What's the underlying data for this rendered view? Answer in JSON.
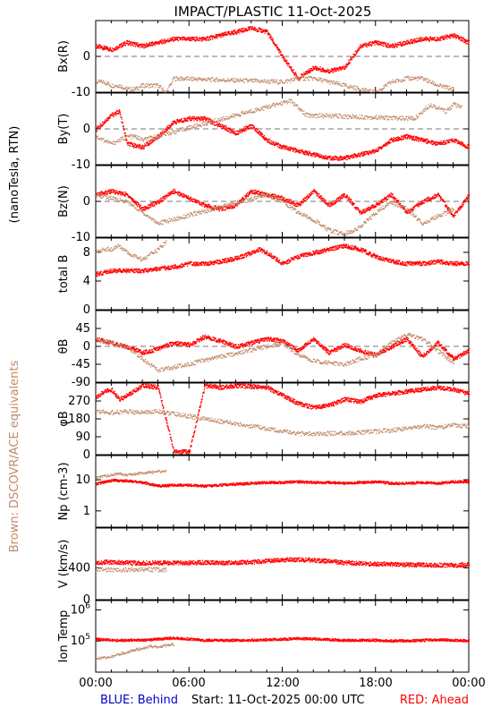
{
  "title": "IMPACT/PLASTIC   11-Oct-2025",
  "side_label_units": "(nanoTesla, RTN)",
  "side_label_legend": "Brown: DSCOVR/ACE equivalents",
  "footer": {
    "behind": "BLUE: Behind",
    "start": "Start: 11-Oct-2025 00:00 UTC",
    "ahead": "RED: Ahead"
  },
  "x_ticks": [
    "00:00",
    "06:00",
    "12:00",
    "18:00",
    "00:00"
  ],
  "colors": {
    "ahead": "#ff0000",
    "dscovr": "#c08a6a",
    "behind": "#0000cc",
    "axis": "#000000"
  },
  "chart_data": [
    {
      "type": "scatter",
      "id": "bx",
      "ylabel": "Bx(R)",
      "ylim": [
        -10,
        10
      ],
      "ticks": [
        {
          "v": 0,
          "t": "0"
        },
        {
          "v": -10,
          "t": "-10"
        }
      ],
      "zero_line": true,
      "series": [
        {
          "name": "RED: Ahead",
          "key": "red",
          "x": [
            0,
            1,
            2,
            3,
            4,
            5,
            6,
            7,
            8,
            9,
            10,
            11,
            12,
            13,
            14,
            15,
            16,
            17,
            18,
            19,
            20,
            21,
            22,
            23,
            24
          ],
          "y": [
            3,
            2,
            4,
            3,
            4,
            5,
            5,
            5,
            6,
            7,
            8,
            7,
            0,
            -6,
            -3,
            -4,
            -3,
            3,
            4,
            3,
            4,
            5,
            5,
            6,
            4
          ]
        },
        {
          "name": "Brown: DSCOVR/ACE equivalents",
          "key": "brown",
          "x": [
            0,
            0.5,
            1,
            1.5,
            2,
            2.5,
            3,
            3.5,
            4,
            4.5,
            5,
            12,
            13,
            14,
            15,
            16,
            17,
            18,
            19,
            20,
            21,
            22,
            23
          ],
          "y": [
            -7,
            -7,
            -8,
            -8,
            -9,
            -9,
            -8,
            -8,
            -8,
            -10,
            -6,
            -7,
            -6,
            -6,
            -7,
            -8,
            -9,
            -10,
            -7,
            -6,
            -6,
            -8,
            -9
          ]
        }
      ]
    },
    {
      "type": "scatter",
      "id": "by",
      "ylabel": "By(T)",
      "ylim": [
        -10,
        10
      ],
      "ticks": [
        {
          "v": 0,
          "t": "0"
        },
        {
          "v": -10,
          "t": "-10"
        }
      ],
      "zero_line": true,
      "series": [
        {
          "name": "RED: Ahead",
          "key": "red",
          "x": [
            0,
            1,
            1.5,
            2,
            3,
            4,
            5,
            6,
            7,
            8,
            9,
            10,
            11,
            12,
            13,
            14,
            15,
            16,
            17,
            18,
            19,
            20,
            21,
            22,
            23,
            24
          ],
          "y": [
            0,
            4,
            5,
            -4,
            -5,
            -2,
            2,
            3,
            3,
            1,
            -1,
            1,
            -3,
            -5,
            -6,
            -7,
            -8,
            -8,
            -7,
            -6,
            -3,
            -2,
            -3,
            -4,
            -3,
            -5
          ]
        },
        {
          "name": "Brown: DSCOVR/ACE equivalents",
          "key": "brown",
          "x": [
            0,
            0.5,
            1,
            1.5,
            2,
            2.5,
            3,
            12.5,
            13,
            13.5,
            20.5,
            21,
            21.5,
            22,
            22.5,
            23,
            23.5
          ],
          "y": [
            -2,
            -3,
            -4,
            -3,
            -2,
            -2,
            -3,
            8,
            6,
            4,
            3,
            5,
            7,
            6,
            5,
            7,
            6
          ]
        }
      ]
    },
    {
      "type": "scatter",
      "id": "bz",
      "ylabel": "Bz(N)",
      "ylim": [
        -10,
        10
      ],
      "ticks": [
        {
          "v": 0,
          "t": "0"
        },
        {
          "v": -10,
          "t": "-10"
        }
      ],
      "zero_line": true,
      "series": [
        {
          "name": "RED: Ahead",
          "key": "red",
          "x": [
            0,
            1,
            2,
            3,
            4,
            5,
            6,
            7,
            8,
            9,
            10,
            11,
            12,
            13,
            14,
            15,
            16,
            17,
            18,
            19,
            20,
            21,
            22,
            23,
            24
          ],
          "y": [
            2,
            3,
            2,
            -2,
            0,
            3,
            1,
            -1,
            -2,
            -1,
            3,
            2,
            1,
            -1,
            3,
            -1,
            2,
            -3,
            -1,
            2,
            -3,
            0,
            2,
            -4,
            2
          ]
        },
        {
          "name": "Brown: DSCOVR/ACE equivalents",
          "key": "brown",
          "x": [
            0,
            1,
            2,
            3,
            4,
            11,
            12,
            13,
            14,
            15,
            16,
            17,
            18,
            19,
            20,
            21,
            22,
            23
          ],
          "y": [
            2,
            1,
            0,
            -3,
            -6,
            2,
            0,
            -3,
            -5,
            -8,
            -9,
            -7,
            -3,
            0,
            -2,
            -6,
            -4,
            -2
          ]
        }
      ]
    },
    {
      "type": "scatter",
      "id": "bt",
      "ylabel": "total B",
      "ylim": [
        0,
        10
      ],
      "ticks": [
        {
          "v": 0,
          "t": "0"
        },
        {
          "v": 4,
          "t": "4"
        },
        {
          "v": 8,
          "t": "8"
        }
      ],
      "zero_line": false,
      "series": [
        {
          "name": "RED: Ahead",
          "key": "red",
          "x": [
            0,
            1,
            2,
            3,
            4,
            5,
            6,
            7,
            8,
            9,
            10,
            10.5,
            11,
            12,
            13,
            14,
            15,
            16,
            17,
            18,
            19,
            20,
            21,
            22,
            23,
            24
          ],
          "y": [
            5,
            5.5,
            5.5,
            5.5,
            5.8,
            6,
            6.5,
            6.5,
            6.8,
            7.2,
            8,
            8.5,
            8,
            6.5,
            7.5,
            8,
            8.5,
            9,
            8.5,
            7.5,
            6.8,
            6.5,
            6.5,
            6.8,
            6.5,
            6.5
          ]
        },
        {
          "name": "Brown: DSCOVR/ACE equivalents",
          "key": "brown",
          "x": [
            0,
            0.5,
            1,
            1.5,
            2,
            2.5,
            3,
            3.5,
            4,
            4.5
          ],
          "y": [
            8,
            8.5,
            8.5,
            9,
            8,
            7.5,
            7,
            7.8,
            8.5,
            9.5
          ]
        }
      ]
    },
    {
      "type": "scatter",
      "id": "theta",
      "ylabel": "θB",
      "ylim": [
        -90,
        90
      ],
      "ticks": [
        {
          "v": 45,
          "t": "45"
        },
        {
          "v": 0,
          "t": "0"
        },
        {
          "v": -45,
          "t": "-45"
        },
        {
          "v": -90,
          "t": "-90"
        }
      ],
      "zero_line": true,
      "series": [
        {
          "name": "RED: Ahead",
          "key": "red",
          "x": [
            0,
            1,
            2,
            3,
            4,
            5,
            6,
            7,
            8,
            9,
            10,
            11,
            12,
            13,
            14,
            15,
            16,
            17,
            18,
            19,
            20,
            21,
            22,
            23,
            24
          ],
          "y": [
            20,
            10,
            0,
            -15,
            -5,
            10,
            5,
            25,
            15,
            0,
            10,
            20,
            15,
            -10,
            20,
            -15,
            5,
            -10,
            -20,
            0,
            20,
            -25,
            10,
            -30,
            -10
          ]
        },
        {
          "name": "Brown: DSCOVR/ACE equivalents",
          "key": "brown",
          "x": [
            0,
            1,
            2,
            3,
            4,
            12,
            13,
            14,
            15,
            16,
            17,
            18,
            19,
            20,
            21,
            22,
            23
          ],
          "y": [
            20,
            10,
            0,
            -30,
            -60,
            10,
            -20,
            -35,
            -40,
            -45,
            -30,
            -20,
            10,
            30,
            20,
            -10,
            -40
          ]
        }
      ]
    },
    {
      "type": "scatter",
      "id": "phi",
      "ylabel": "φB",
      "ylim": [
        0,
        360
      ],
      "ticks": [
        {
          "v": 270,
          "t": "270"
        },
        {
          "v": 180,
          "t": "180"
        },
        {
          "v": 90,
          "t": "90"
        },
        {
          "v": 0,
          "t": "0"
        }
      ],
      "zero_line": false,
      "series": [
        {
          "name": "RED: Ahead",
          "key": "red",
          "x": [
            0,
            0.5,
            1,
            1.5,
            2,
            3,
            4,
            5,
            6,
            7,
            8,
            9,
            10,
            11,
            12,
            13,
            14,
            15,
            16,
            17,
            18,
            19,
            20,
            21,
            22,
            23,
            24
          ],
          "y": [
            290,
            320,
            330,
            280,
            300,
            350,
            340,
            20,
            15,
            350,
            340,
            350,
            345,
            340,
            300,
            260,
            240,
            250,
            280,
            270,
            300,
            310,
            320,
            330,
            340,
            330,
            310
          ]
        },
        {
          "name": "Brown: DSCOVR/ACE equivalents",
          "key": "brown",
          "x": [
            0,
            1,
            2,
            3,
            4,
            12,
            13,
            14,
            15,
            16,
            17,
            18,
            19,
            20,
            21,
            22,
            23,
            24
          ],
          "y": [
            220,
            215,
            220,
            215,
            220,
            120,
            110,
            105,
            110,
            110,
            115,
            120,
            125,
            135,
            145,
            140,
            150,
            145
          ]
        }
      ]
    },
    {
      "type": "scatter",
      "id": "np",
      "ylabel": "Np (cm-3)",
      "ylog": true,
      "ylim": [
        0.3,
        60
      ],
      "ticks": [
        {
          "v": 10,
          "t": "10"
        },
        {
          "v": 1,
          "t": "1"
        }
      ],
      "zero_line": false,
      "series": [
        {
          "name": "RED: Ahead",
          "key": "red",
          "x": [
            0,
            1,
            2,
            3,
            4,
            5,
            6,
            7,
            8,
            9,
            10,
            11,
            12,
            13,
            14,
            15,
            16,
            17,
            18,
            19,
            20,
            21,
            22,
            23,
            24
          ],
          "y": [
            7.5,
            10,
            9.5,
            8.5,
            6.5,
            7,
            7,
            6.5,
            7,
            7.5,
            8,
            8.5,
            8.5,
            9,
            8.5,
            8.5,
            8,
            8.5,
            9,
            8,
            8,
            8.5,
            8,
            9,
            9
          ]
        },
        {
          "name": "Brown: DSCOVR/ACE equivalents",
          "key": "brown",
          "x": [
            0,
            0.5,
            1,
            1.5,
            2,
            2.5,
            3,
            3.5,
            4,
            4.5
          ],
          "y": [
            12,
            14,
            15,
            16,
            15,
            16,
            17,
            18,
            19,
            20
          ]
        }
      ]
    },
    {
      "type": "scatter",
      "id": "v",
      "ylabel": "V (km/s)",
      "ylim": [
        0,
        900
      ],
      "ticks": [
        {
          "v": 400,
          "t": "400"
        },
        {
          "v": 0,
          "t": "0"
        }
      ],
      "zero_line": false,
      "series": [
        {
          "name": "RED: Ahead",
          "key": "red",
          "x": [
            0,
            1,
            2,
            3,
            4,
            5,
            6,
            7,
            8,
            9,
            10,
            11,
            12,
            13,
            14,
            15,
            16,
            17,
            18,
            19,
            20,
            21,
            22,
            23,
            24
          ],
          "y": [
            470,
            480,
            470,
            465,
            470,
            470,
            470,
            475,
            470,
            470,
            480,
            490,
            505,
            510,
            500,
            490,
            470,
            460,
            455,
            450,
            445,
            445,
            440,
            440,
            445
          ]
        },
        {
          "name": "Brown: DSCOVR/ACE equivalents",
          "key": "brown",
          "x": [
            0,
            0.5,
            1,
            1.5,
            2,
            2.5,
            3,
            3.5,
            4,
            4.5
          ],
          "y": [
            380,
            385,
            385,
            380,
            385,
            385,
            380,
            385,
            385,
            380
          ]
        }
      ]
    },
    {
      "type": "scatter",
      "id": "temp",
      "ylabel": "Ion Temp",
      "ylog": true,
      "ylim": [
        10000,
        2000000
      ],
      "ticks": [
        {
          "v": 1000000,
          "t": "10^6"
        },
        {
          "v": 100000,
          "t": "10^5"
        }
      ],
      "zero_line": false,
      "series": [
        {
          "name": "RED: Ahead",
          "key": "red",
          "x": [
            0,
            1,
            2,
            3,
            4,
            5,
            6,
            7,
            8,
            9,
            10,
            11,
            12,
            13,
            14,
            15,
            16,
            17,
            18,
            19,
            20,
            21,
            22,
            23,
            24
          ],
          "y": [
            120000,
            110000,
            110000,
            110000,
            120000,
            130000,
            120000,
            110000,
            110000,
            110000,
            110000,
            115000,
            120000,
            125000,
            120000,
            115000,
            110000,
            110000,
            110000,
            105000,
            105000,
            110000,
            115000,
            110000,
            105000
          ]
        },
        {
          "name": "Brown: DSCOVR/ACE equivalents",
          "key": "brown",
          "x": [
            0,
            0.5,
            1,
            1.5,
            2,
            2.5,
            3,
            3.5,
            4,
            4.5,
            5
          ],
          "y": [
            28000,
            30000,
            32000,
            40000,
            45000,
            55000,
            60000,
            70000,
            65000,
            75000,
            80000
          ]
        }
      ]
    }
  ]
}
